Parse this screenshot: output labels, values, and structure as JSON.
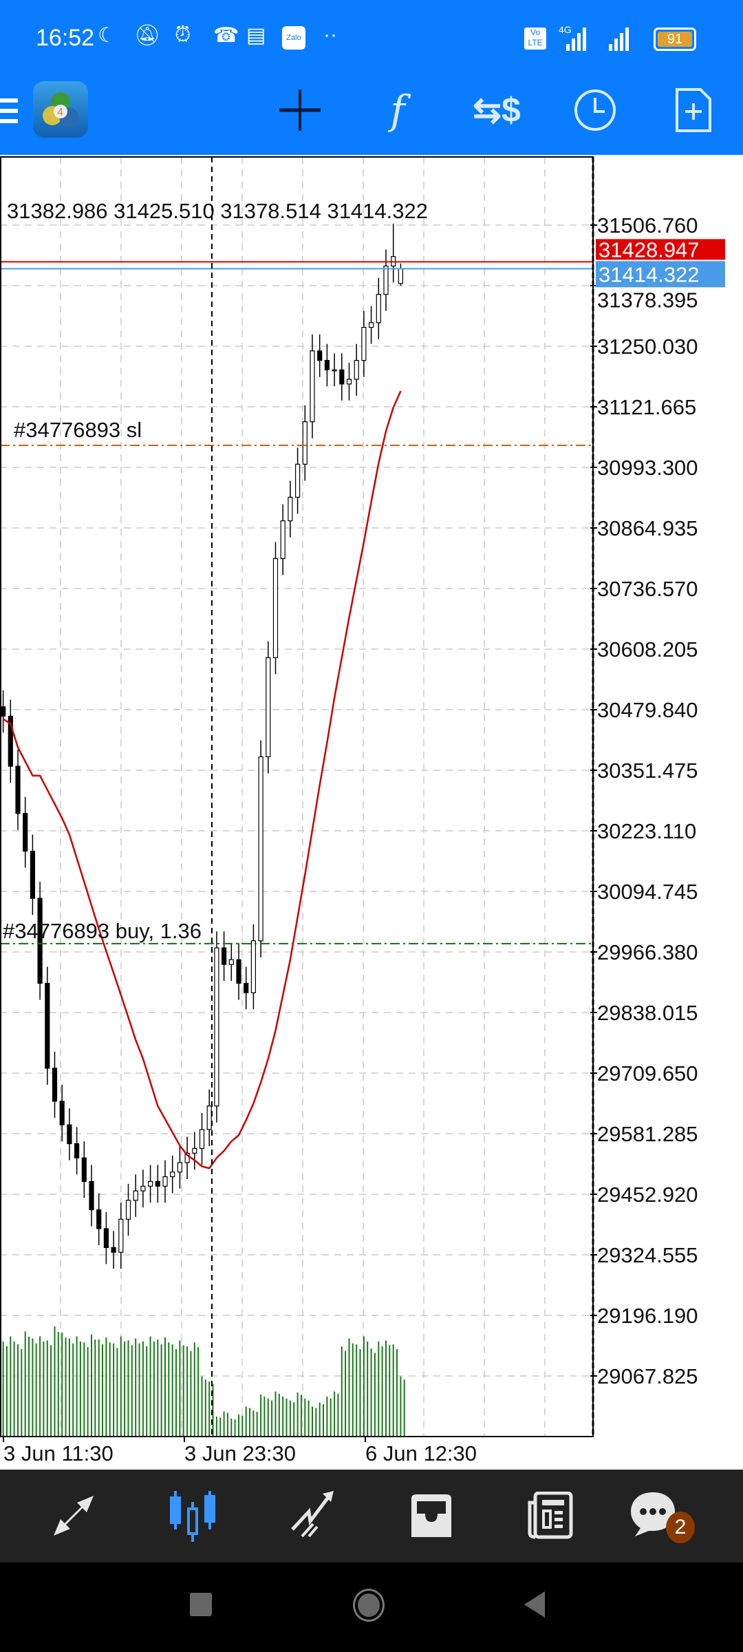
{
  "status_bar": {
    "time": "16:52",
    "icons": [
      "moon-icon",
      "vibrate-off-icon",
      "alarm-icon",
      "missed-call-icon",
      "notes-icon",
      "zalo-icon",
      "more-dots-icon",
      "volte-icon",
      "signal-4g-icon",
      "signal-icon",
      "battery-icon"
    ],
    "zalo_label": "Zalo",
    "volte_label": "Vo LTE",
    "network": "4G",
    "battery": "91"
  },
  "toolbar": {
    "icons": [
      "menu-icon",
      "metatrader-logo",
      "crosshair-icon",
      "indicators-f-icon",
      "trade-dollar-icon",
      "timeframe-clock-icon",
      "new-order-icon"
    ],
    "f_label": "f"
  },
  "chart": {
    "ohlc_header": "31382.986 31425.510 31378.514 31414.322",
    "ask_label": "31428.947",
    "bid_label": "31414.322",
    "sl_label": "#34776893 sl",
    "buy_label": "#34776893 buy, 1.36",
    "colors": {
      "ask": "#e00000",
      "bid": "#4a9be8",
      "sl": "#d06010",
      "buy": "#107010",
      "ma": "#cc0000",
      "volume": "#1a7a1a",
      "candle": "#000000"
    }
  },
  "chart_data": {
    "type": "candlestick",
    "price_ticks": [
      "31506.760",
      "31378.395",
      "31250.030",
      "31121.665",
      "30993.300",
      "30864.935",
      "30736.570",
      "30608.205",
      "30479.840",
      "30351.475",
      "30223.110",
      "30094.745",
      "29966.380",
      "29838.015",
      "29709.650",
      "29581.285",
      "29452.920",
      "29324.555",
      "29196.190",
      "29067.825"
    ],
    "time_ticks": [
      "3 Jun 11:30",
      "3 Jun 23:30",
      "6 Jun 12:30"
    ],
    "ylim": [
      29000,
      31580
    ],
    "ask": 31428.947,
    "bid": 31414.322,
    "sl_price": 31040,
    "buy_price": 29984,
    "grid": true,
    "closes": [
      30466,
      30360,
      30260,
      30180,
      30080,
      29900,
      29720,
      29650,
      29600,
      29560,
      29530,
      29480,
      29420,
      29380,
      29340,
      29330,
      29400,
      29440,
      29460,
      29470,
      29480,
      29470,
      29490,
      29500,
      29520,
      29540,
      29550,
      29590,
      29640,
      29975,
      29940,
      29950,
      29900,
      29880,
      29990,
      30380,
      30590,
      30800,
      30880,
      30930,
      31000,
      31090,
      31240,
      31220,
      31200,
      31200,
      31170,
      31180,
      31220,
      31290,
      31300,
      31360,
      31420,
      31440,
      31414.322
    ],
    "last_bar": {
      "open": 31382.986,
      "high": 31425.51,
      "low": 31378.514,
      "close": 31414.322
    },
    "ma": [
      30460,
      30450,
      30400,
      30370,
      30340,
      30340,
      30310,
      30280,
      30250,
      30215,
      30165,
      30115,
      30065,
      30015,
      29968,
      29922,
      29875,
      29828,
      29780,
      29740,
      29690,
      29640,
      29612,
      29584,
      29556,
      29536,
      29525,
      29512,
      29508,
      29530,
      29545,
      29565,
      29578,
      29610,
      29645,
      29690,
      29740,
      29800,
      29875,
      29950,
      30040,
      30130,
      30225,
      30320,
      30410,
      30505,
      30590,
      30675,
      30755,
      30835,
      30920,
      31002,
      31070,
      31120,
      31155
    ],
    "volume": [
      95,
      100,
      92,
      105,
      98,
      100,
      96,
      110,
      104,
      98,
      100,
      94,
      102,
      97,
      99,
      93,
      100,
      96,
      98,
      95,
      100,
      97,
      99,
      92,
      96,
      90,
      94,
      60,
      55,
      20,
      25,
      18,
      22,
      30,
      26,
      42,
      38,
      45,
      40,
      36,
      44,
      38,
      30,
      34,
      40,
      45,
      90,
      98,
      92,
      100,
      88,
      95,
      96,
      92,
      60
    ]
  },
  "bottom_nav": {
    "items": [
      "quotes-icon",
      "chart-icon",
      "trade-icon",
      "history-icon",
      "news-icon",
      "messages-icon"
    ],
    "messages_badge": "2"
  },
  "system_nav": {
    "items": [
      "recents-button",
      "home-button",
      "back-button"
    ]
  }
}
